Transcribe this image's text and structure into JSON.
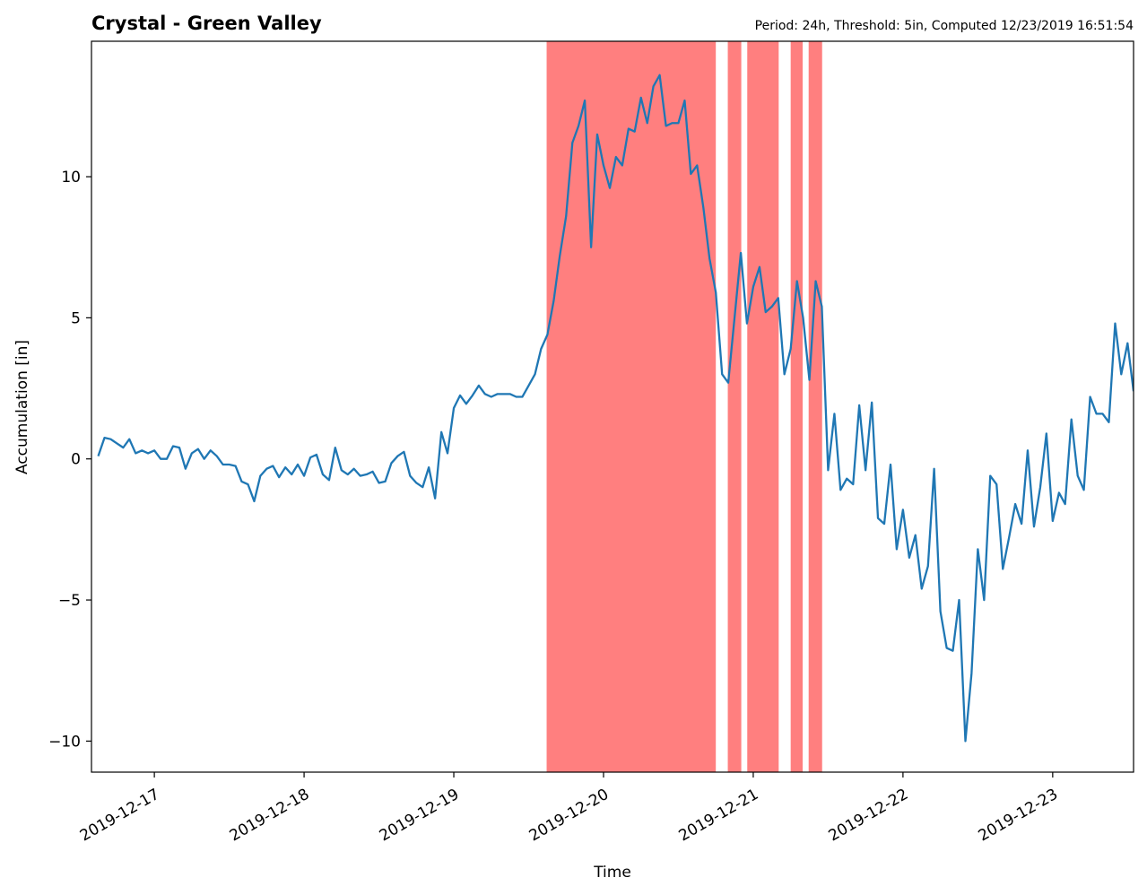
{
  "chart_data": {
    "type": "line",
    "title": "Crystal - Green Valley",
    "subtitle": "Period: 24h, Threshold: 5in, Computed 12/23/2019 16:51:54",
    "xlabel": "Time",
    "ylabel": "Accumulation [in]",
    "x_unit": "days after 2019-12-17 00:00",
    "xlim": [
      -0.42,
      6.54
    ],
    "ylim": [
      -11.1,
      14.8
    ],
    "x_ticks": [
      {
        "value": 0,
        "label": "2019-12-17"
      },
      {
        "value": 1,
        "label": "2019-12-18"
      },
      {
        "value": 2,
        "label": "2019-12-19"
      },
      {
        "value": 3,
        "label": "2019-12-20"
      },
      {
        "value": 4,
        "label": "2019-12-21"
      },
      {
        "value": 5,
        "label": "2019-12-22"
      },
      {
        "value": 6,
        "label": "2019-12-23"
      }
    ],
    "y_ticks": [
      {
        "value": 10,
        "label": "10"
      },
      {
        "value": 5,
        "label": "5"
      },
      {
        "value": 0,
        "label": "0"
      },
      {
        "value": -5,
        "label": "−5"
      },
      {
        "value": -10,
        "label": "−10"
      }
    ],
    "grid": false,
    "line_color": "#1f77b4",
    "highlight_color": "#ff7f7f",
    "highlight_spans": [
      [
        2.62,
        3.75
      ],
      [
        3.83,
        3.92
      ],
      [
        3.96,
        4.17
      ],
      [
        4.25,
        4.33
      ],
      [
        4.37,
        4.46
      ]
    ],
    "series": [
      {
        "x": [
          -0.375,
          -0.333,
          -0.292,
          -0.25,
          -0.208,
          -0.167,
          -0.125,
          -0.083,
          -0.042,
          0,
          0.042,
          0.083,
          0.125,
          0.167,
          0.208,
          0.25,
          0.292,
          0.333,
          0.375,
          0.417,
          0.458,
          0.5,
          0.542,
          0.583,
          0.625,
          0.667,
          0.708,
          0.75,
          0.792,
          0.833,
          0.875,
          0.917,
          0.958,
          1,
          1.042,
          1.083,
          1.125,
          1.167,
          1.208,
          1.25,
          1.292,
          1.333,
          1.375,
          1.417,
          1.458,
          1.5,
          1.542,
          1.583,
          1.625,
          1.667,
          1.708,
          1.75,
          1.792,
          1.833,
          1.875,
          1.917,
          1.958,
          2,
          2.042,
          2.083,
          2.125,
          2.167,
          2.208,
          2.25,
          2.292,
          2.333,
          2.375,
          2.417,
          2.458,
          2.5,
          2.542,
          2.583,
          2.625,
          2.667,
          2.708,
          2.75,
          2.792,
          2.833,
          2.875,
          2.917,
          2.958,
          3,
          3.042,
          3.083,
          3.125,
          3.167,
          3.208,
          3.25,
          3.292,
          3.333,
          3.375,
          3.417,
          3.458,
          3.5,
          3.542,
          3.583,
          3.625,
          3.667,
          3.708,
          3.75,
          3.792,
          3.833,
          3.875,
          3.917,
          3.958,
          4,
          4.042,
          4.083,
          4.125,
          4.167,
          4.208,
          4.25,
          4.292,
          4.333,
          4.375,
          4.417,
          4.458,
          4.5,
          4.542,
          4.583,
          4.625,
          4.667,
          4.708,
          4.75,
          4.792,
          4.833,
          4.875,
          4.917,
          4.958,
          5,
          5.042,
          5.083,
          5.125,
          5.167,
          5.208,
          5.25,
          5.292,
          5.333,
          5.375,
          5.417,
          5.458,
          5.5,
          5.542,
          5.583,
          5.625,
          5.667,
          5.708,
          5.75,
          5.792,
          5.833,
          5.875,
          5.917,
          5.958,
          6,
          6.042,
          6.083,
          6.125,
          6.167,
          6.208,
          6.25,
          6.292,
          6.333,
          6.375,
          6.417,
          6.458,
          6.5,
          6.54
        ],
        "values": [
          0.1,
          0.75,
          0.7,
          0.55,
          0.4,
          0.7,
          0.2,
          0.3,
          0.2,
          0.3,
          0.0,
          0.0,
          0.45,
          0.4,
          -0.35,
          0.2,
          0.35,
          0.0,
          0.3,
          0.1,
          -0.2,
          -0.2,
          -0.25,
          -0.8,
          -0.9,
          -1.5,
          -0.6,
          -0.35,
          -0.25,
          -0.65,
          -0.3,
          -0.55,
          -0.2,
          -0.6,
          0.05,
          0.15,
          -0.55,
          -0.75,
          0.4,
          -0.4,
          -0.55,
          -0.35,
          -0.6,
          -0.55,
          -0.45,
          -0.85,
          -0.8,
          -0.15,
          0.1,
          0.25,
          -0.6,
          -0.85,
          -1.0,
          -0.3,
          -1.4,
          0.95,
          0.2,
          1.8,
          2.25,
          1.95,
          2.25,
          2.6,
          2.3,
          2.2,
          2.3,
          2.3,
          2.3,
          2.2,
          2.2,
          2.6,
          3.0,
          3.9,
          4.4,
          5.6,
          7.2,
          8.6,
          11.2,
          11.8,
          12.7,
          7.5,
          11.5,
          10.4,
          9.6,
          10.7,
          10.4,
          11.7,
          11.6,
          12.8,
          11.9,
          13.2,
          13.6,
          11.8,
          11.9,
          11.9,
          12.7,
          10.1,
          10.4,
          8.9,
          7.1,
          5.9,
          3.0,
          2.7,
          5.0,
          7.3,
          4.8,
          6.1,
          6.8,
          5.2,
          5.4,
          5.7,
          3.0,
          3.9,
          6.3,
          5.0,
          2.8,
          6.3,
          5.4,
          -0.4,
          1.6,
          -1.1,
          -0.7,
          -0.9,
          1.9,
          -0.4,
          2.0,
          -2.1,
          -2.3,
          -0.2,
          -3.2,
          -1.8,
          -3.5,
          -2.7,
          -4.6,
          -3.8,
          -0.35,
          -5.4,
          -6.7,
          -6.8,
          -5.0,
          -10.0,
          -7.6,
          -3.2,
          -5.0,
          -0.6,
          -0.9,
          -3.9,
          -2.8,
          -1.6,
          -2.3,
          0.3,
          -2.4,
          -1.0,
          0.9,
          -2.2,
          -1.2,
          -1.6,
          1.4,
          -0.6,
          -1.1,
          2.2,
          1.6,
          1.6,
          1.3,
          4.8,
          3.0,
          4.1,
          2.4
        ]
      }
    ]
  }
}
